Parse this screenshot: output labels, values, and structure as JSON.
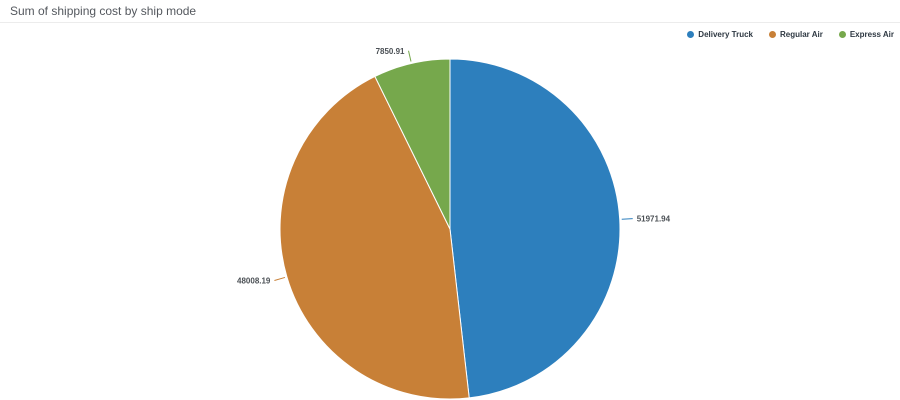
{
  "header": {
    "title": "Sum of shipping cost by ship mode"
  },
  "legend": {
    "position": "top-right",
    "items": [
      {
        "label": "Delivery Truck",
        "color": "#2d7fbd"
      },
      {
        "label": "Regular Air",
        "color": "#c88037"
      },
      {
        "label": "Express Air",
        "color": "#76a84c"
      }
    ]
  },
  "chart_data": {
    "type": "pie",
    "title": "Sum of shipping cost by ship mode",
    "categories": [
      "Delivery Truck",
      "Regular Air",
      "Express Air"
    ],
    "values": [
      51971.94,
      48008.19,
      7850.91
    ],
    "data_labels": [
      "51971.94",
      "48008.19",
      "7850.91"
    ],
    "colors": [
      "#2d7fbd",
      "#c88037",
      "#76a84c"
    ],
    "start_angle_deg": 0,
    "direction": "clockwise",
    "legend_position": "top-right",
    "label_style": "value-with-leader-line"
  }
}
